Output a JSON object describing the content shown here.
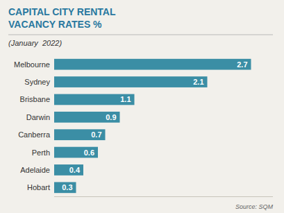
{
  "chart_data": {
    "type": "bar",
    "orientation": "horizontal",
    "title": "CAPITAL CITY RENTAL\nVACANCY RATES %",
    "subtitle": "(January  2022)",
    "annotations": [
      "Source: SQM"
    ],
    "categories": [
      "Melbourne",
      "Sydney",
      "Brisbane",
      "Darwin",
      "Canberra",
      "Perth",
      "Adelaide",
      "Hobart"
    ],
    "values": [
      2.7,
      2.1,
      1.1,
      0.9,
      0.7,
      0.6,
      0.4,
      0.3
    ],
    "color": "#3b8ea5",
    "xlim": [
      0,
      3.0
    ],
    "data_labels": true,
    "tick_labels": "y",
    "grid": false
  }
}
